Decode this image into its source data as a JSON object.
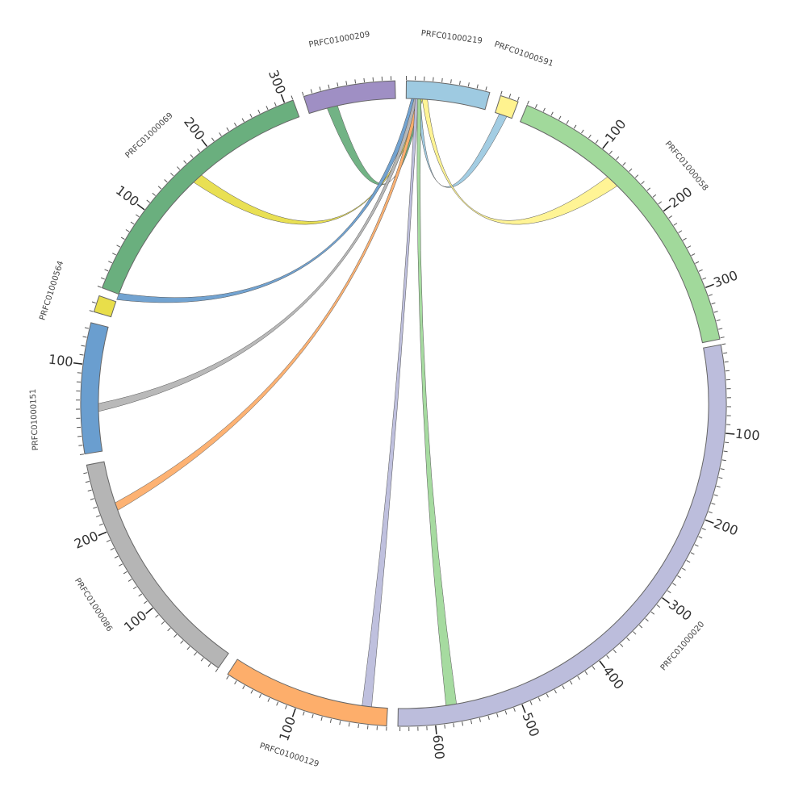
{
  "segments": [
    {
      "label": "PRFC01000219",
      "color": "#9ecae1"
    },
    {
      "label": "PRFC01000591",
      "color": "#fff38f"
    },
    {
      "label": "PRFC01000058",
      "color": "#a1d99b",
      "ticks": [
        100,
        200,
        300
      ]
    },
    {
      "label": "PRFC01000020",
      "color": "#bcbddc",
      "ticks": [
        100,
        200,
        300,
        400,
        500,
        600
      ]
    },
    {
      "label": "PRFC01000129",
      "color": "#fdae6b",
      "ticks": [
        100
      ]
    },
    {
      "label": "PRFC01000086",
      "color": "#b5b5b5",
      "ticks": [
        100,
        200
      ]
    },
    {
      "label": "PRFC01000151",
      "color": "#6a9ecf",
      "ticks": [
        100
      ]
    },
    {
      "label": "PRFC01000564",
      "color": "#e8de4a"
    },
    {
      "label": "PRFC01000069",
      "color": "#6aaf7e",
      "ticks": [
        100,
        200,
        300
      ]
    },
    {
      "label": "PRFC01000209",
      "color": "#9f8fc4"
    }
  ]
}
